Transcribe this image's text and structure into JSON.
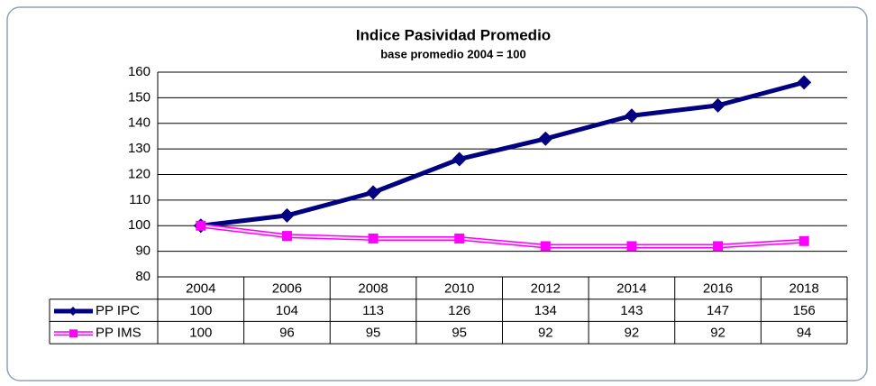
{
  "chart_data": {
    "type": "line",
    "title": "Indice Pasividad Promedio",
    "subtitle": "base promedio 2004 = 100",
    "categories": [
      "2004",
      "2006",
      "2008",
      "2010",
      "2012",
      "2014",
      "2016",
      "2018"
    ],
    "series": [
      {
        "name": "PP IPC",
        "color": "#000080",
        "values": [
          100,
          104,
          113,
          126,
          134,
          143,
          147,
          156
        ]
      },
      {
        "name": "PP IMS",
        "color": "#ff00ff",
        "values": [
          100,
          96,
          95,
          95,
          92,
          92,
          92,
          94
        ]
      }
    ],
    "ylim": [
      80,
      160
    ],
    "yticks": [
      80,
      90,
      100,
      110,
      120,
      130,
      140,
      150,
      160
    ],
    "grid": true
  }
}
